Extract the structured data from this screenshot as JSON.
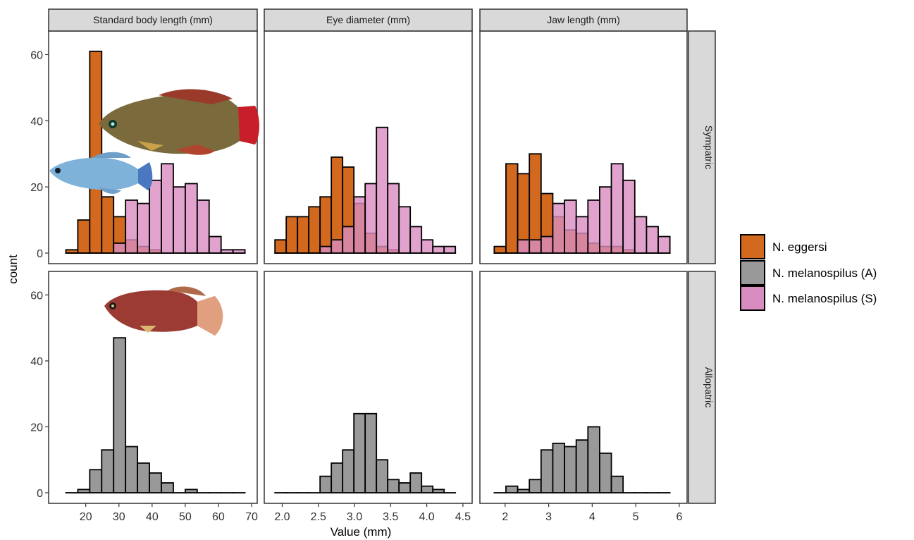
{
  "chart_data": {
    "type": "bar",
    "xlabel": "Value (mm)",
    "ylabel": "count",
    "ylim": [
      0,
      65
    ],
    "y_ticks": [
      0,
      20,
      40,
      60
    ],
    "legend": {
      "placement": "right",
      "entries": [
        {
          "key": "eggersi",
          "label": "N. eggersi",
          "color": "#D2691E"
        },
        {
          "key": "melA",
          "label": "N. melanospilus (A)",
          "color": "#999999"
        },
        {
          "key": "melS",
          "label": "N. melanospilus (S)",
          "color": "#D98CC0"
        }
      ]
    },
    "rows": [
      {
        "key": "sym",
        "label": "Sympatric"
      },
      {
        "key": "allo",
        "label": "Allopatric"
      }
    ],
    "columns": [
      {
        "label": "Standard body length (mm)",
        "xlim": [
          10.5,
          70
        ],
        "x_ticks": [
          20,
          30,
          40,
          50,
          60,
          70
        ],
        "bin_width": 3.6,
        "bins": [
          14,
          17.6,
          21.2,
          24.8,
          28.4,
          32,
          35.6,
          39.2,
          42.8,
          46.4,
          50,
          53.6,
          57.2,
          60.8,
          64.4
        ],
        "sympatric": {
          "eggersi": [
            1,
            10,
            61,
            17,
            11,
            4,
            2,
            1,
            0,
            0,
            0,
            0,
            0,
            0,
            0
          ],
          "melS": [
            0,
            0,
            0,
            0,
            3,
            16,
            15,
            22,
            27,
            20,
            21,
            16,
            5,
            1,
            1
          ]
        },
        "allopatric": {
          "melA": [
            0,
            1,
            7,
            13,
            47,
            14,
            9,
            6,
            3,
            0,
            1,
            0,
            0,
            0,
            0
          ]
        }
      },
      {
        "label": "Eye diameter (mm)",
        "xlim": [
          1.83,
          4.55
        ],
        "x_ticks": [
          2.0,
          2.5,
          3.0,
          3.5,
          4.0,
          4.5
        ],
        "x_tick_labels": [
          "2.0",
          "2.5",
          "3.0",
          "3.5",
          "4.0",
          "4.5"
        ],
        "bin_width": 0.156,
        "bins": [
          1.9,
          2.056,
          2.212,
          2.368,
          2.524,
          2.68,
          2.836,
          2.992,
          3.148,
          3.304,
          3.46,
          3.616,
          3.772,
          3.928,
          4.084,
          4.24
        ],
        "sympatric": {
          "eggersi": [
            4,
            11,
            11,
            14,
            17,
            29,
            26,
            15,
            6,
            2,
            1,
            0,
            0,
            0,
            0,
            0
          ],
          "melS": [
            0,
            0,
            0,
            0,
            2,
            4,
            8,
            17,
            21,
            38,
            21,
            14,
            8,
            4,
            2,
            2
          ]
        },
        "allopatric": {
          "melA": [
            0,
            0,
            0,
            0,
            5,
            9,
            13,
            24,
            24,
            10,
            4,
            3,
            6,
            2,
            1,
            0
          ]
        }
      },
      {
        "label": "Jaw length (mm)",
        "xlim": [
          1.55,
          6.05
        ],
        "x_ticks": [
          2,
          3,
          4,
          5,
          6
        ],
        "bin_width": 0.269,
        "bins": [
          1.75,
          2.019,
          2.288,
          2.557,
          2.826,
          3.095,
          3.364,
          3.633,
          3.902,
          4.171,
          4.44,
          4.709,
          4.978,
          5.247,
          5.516
        ],
        "sympatric": {
          "eggersi": [
            2,
            27,
            24,
            30,
            18,
            11,
            7,
            6,
            3,
            2,
            2,
            1,
            0,
            0,
            0
          ],
          "melS": [
            0,
            0,
            4,
            4,
            5,
            15,
            16,
            11,
            16,
            20,
            27,
            22,
            11,
            8,
            5
          ]
        },
        "allopatric": {
          "melA": [
            0,
            2,
            1,
            4,
            13,
            15,
            14,
            16,
            20,
            12,
            5,
            0,
            0,
            0,
            0
          ]
        }
      }
    ]
  },
  "illustrations": [
    {
      "icon": "killifish-red-tail-icon"
    },
    {
      "icon": "killifish-blue-icon"
    },
    {
      "icon": "killifish-allopatric-icon"
    }
  ]
}
